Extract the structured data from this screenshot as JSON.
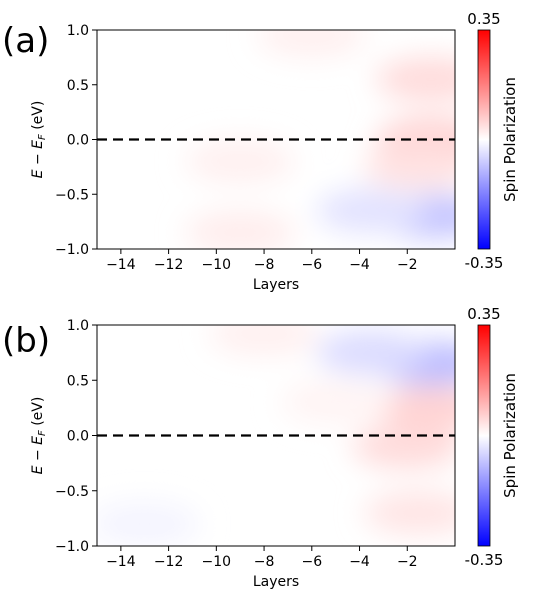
{
  "chart_data": [
    {
      "type": "heatmap",
      "panel_label": "(a)",
      "xlabel": "Layers",
      "ylabel": "E − E_F (eV)",
      "x_ticks": [
        -14,
        -12,
        -10,
        -8,
        -6,
        -4,
        -2
      ],
      "x_tick_labels": [
        "−14",
        "−12",
        "−10",
        "−8",
        "−6",
        "−4",
        "−2"
      ],
      "xlim": [
        -15,
        0
      ],
      "y_ticks": [
        -1.0,
        -0.5,
        0.0,
        0.5,
        1.0
      ],
      "y_tick_labels": [
        "−1.0",
        "−0.5",
        "0.0",
        "0.5",
        "1.0"
      ],
      "ylim": [
        -1.0,
        1.0
      ],
      "reference_line": {
        "y": 0.0,
        "style": "dashed",
        "color": "#000000"
      },
      "colorbar": {
        "label": "Spin Polarization",
        "min": -0.35,
        "max": 0.35,
        "min_label": "-0.35",
        "max_label": "0.35",
        "colormap": [
          "#0000ff",
          "#ffffff",
          "#ff0000"
        ]
      },
      "features": [
        {
          "x": -1.0,
          "y": -0.7,
          "value": -0.08
        },
        {
          "x": -3.5,
          "y": -0.65,
          "value": -0.04
        },
        {
          "x": -1.0,
          "y": 0.55,
          "value": 0.05
        },
        {
          "x": -1.0,
          "y": 0.0,
          "value": 0.06
        },
        {
          "x": -9.0,
          "y": -0.85,
          "value": 0.025
        },
        {
          "x": -9.0,
          "y": -0.2,
          "value": 0.02
        },
        {
          "x": -6.0,
          "y": 0.95,
          "value": 0.02
        },
        {
          "x": -1.5,
          "y": -0.25,
          "value": 0.04
        }
      ]
    },
    {
      "type": "heatmap",
      "panel_label": "(b)",
      "xlabel": "Layers",
      "ylabel": "E − E_F (eV)",
      "x_ticks": [
        -14,
        -12,
        -10,
        -8,
        -6,
        -4,
        -2
      ],
      "x_tick_labels": [
        "−14",
        "−12",
        "−10",
        "−8",
        "−6",
        "−4",
        "−2"
      ],
      "xlim": [
        -15,
        0
      ],
      "y_ticks": [
        -1.0,
        -0.5,
        0.0,
        0.5,
        1.0
      ],
      "y_tick_labels": [
        "−1.0",
        "−0.5",
        "0.0",
        "0.5",
        "1.0"
      ],
      "ylim": [
        -1.0,
        1.0
      ],
      "reference_line": {
        "y": 0.0,
        "style": "dashed",
        "color": "#000000"
      },
      "colorbar": {
        "label": "Spin Polarization",
        "min": -0.35,
        "max": 0.35,
        "min_label": "-0.35",
        "max_label": "0.35",
        "colormap": [
          "#0000ff",
          "#ffffff",
          "#ff0000"
        ]
      },
      "features": [
        {
          "x": -1.0,
          "y": 0.65,
          "value": -0.09
        },
        {
          "x": -3.5,
          "y": 0.75,
          "value": -0.05
        },
        {
          "x": -1.0,
          "y": 0.25,
          "value": 0.06
        },
        {
          "x": -2.0,
          "y": -0.1,
          "value": 0.05
        },
        {
          "x": -1.5,
          "y": -0.7,
          "value": 0.035
        },
        {
          "x": -8.0,
          "y": 0.92,
          "value": 0.02
        },
        {
          "x": -13.0,
          "y": -0.8,
          "value": -0.015
        },
        {
          "x": -5.0,
          "y": 0.3,
          "value": 0.015
        }
      ]
    }
  ]
}
